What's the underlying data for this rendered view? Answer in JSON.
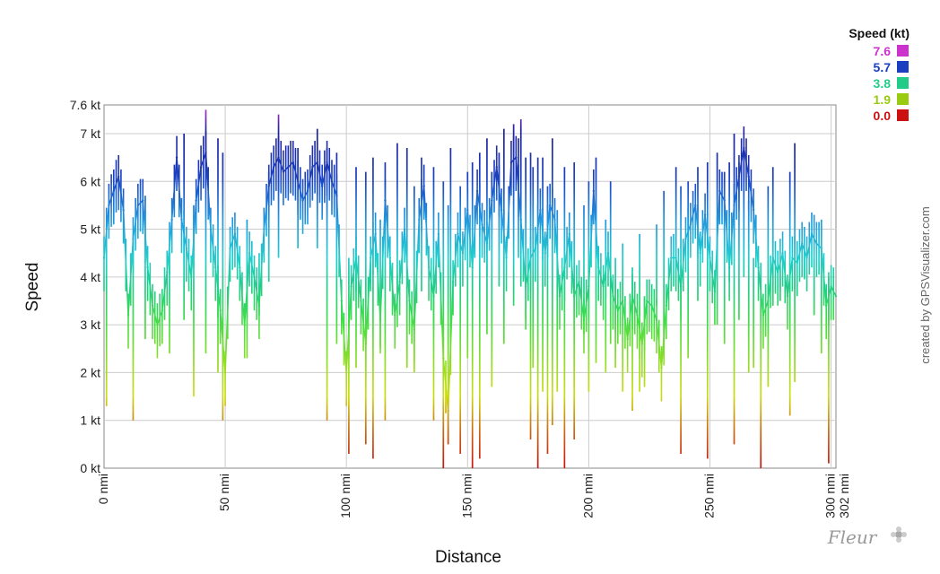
{
  "chart_data": {
    "type": "line",
    "xlabel": "Distance",
    "ylabel": "Speed",
    "xlim": [
      0,
      302
    ],
    "ylim": [
      0,
      7.6
    ],
    "grid": true,
    "x_ticks": [
      {
        "value": 0,
        "label": "0 nmi"
      },
      {
        "value": 50,
        "label": "50 nmi"
      },
      {
        "value": 100,
        "label": "100 nmi"
      },
      {
        "value": 150,
        "label": "150 nmi"
      },
      {
        "value": 200,
        "label": "200 nmi"
      },
      {
        "value": 250,
        "label": "250 nmi"
      },
      {
        "value": 300,
        "label": "300 nmi"
      },
      {
        "value": 302,
        "label": "302 nmi"
      }
    ],
    "y_ticks": [
      {
        "value": 0,
        "label": "0 kt"
      },
      {
        "value": 1,
        "label": "1 kt"
      },
      {
        "value": 2,
        "label": "2 kt"
      },
      {
        "value": 3,
        "label": "3 kt"
      },
      {
        "value": 4,
        "label": "4 kt"
      },
      {
        "value": 5,
        "label": "5 kt"
      },
      {
        "value": 6,
        "label": "6 kt"
      },
      {
        "value": 7,
        "label": "7 kt"
      },
      {
        "value": 7.6,
        "label": "7.6 kt"
      }
    ],
    "legend": {
      "title": "Speed (kt)",
      "placement": "top-right",
      "entries": [
        {
          "label": "7.6",
          "color": "#cc33cc"
        },
        {
          "label": "5.7",
          "color": "#1a40c0"
        },
        {
          "label": "3.8",
          "color": "#22cc88"
        },
        {
          "label": "1.9",
          "color": "#99cc11"
        },
        {
          "label": "0.0",
          "color": "#cc1111"
        }
      ]
    },
    "series": [
      {
        "x": [
          0,
          2,
          4,
          6,
          8,
          10,
          12,
          14,
          16,
          18,
          20,
          22,
          24,
          26,
          28,
          30,
          32,
          34,
          36,
          38,
          40,
          42,
          44,
          46,
          48,
          50,
          52,
          54,
          56,
          58,
          60,
          62,
          64,
          66,
          68,
          70,
          72,
          74,
          76,
          78,
          80,
          82,
          84,
          86,
          88,
          90,
          92,
          94,
          96,
          98,
          100,
          102,
          104,
          106,
          108,
          110,
          112,
          114,
          116,
          118,
          120,
          122,
          124,
          126,
          128,
          130,
          132,
          134,
          136,
          138,
          140,
          142,
          144,
          146,
          148,
          150,
          152,
          154,
          156,
          158,
          160,
          162,
          164,
          166,
          168,
          170,
          172,
          174,
          176,
          178,
          180,
          182,
          184,
          186,
          188,
          190,
          192,
          194,
          196,
          198,
          200,
          202,
          204,
          206,
          208,
          210,
          212,
          214,
          216,
          218,
          220,
          222,
          224,
          226,
          228,
          230,
          232,
          234,
          236,
          238,
          240,
          242,
          244,
          246,
          248,
          250,
          252,
          254,
          256,
          258,
          260,
          262,
          264,
          266,
          268,
          270,
          272,
          274,
          276,
          278,
          280,
          282,
          284,
          286,
          288,
          290,
          292,
          294,
          296,
          298,
          300,
          302
        ],
        "values": [
          4.4,
          5.5,
          5.8,
          6.1,
          5.4,
          3.2,
          4.8,
          5.5,
          5.6,
          4.2,
          3.4,
          3.0,
          3.3,
          4.1,
          5.2,
          6.5,
          5.2,
          4.6,
          4.0,
          5.6,
          6.3,
          6.6,
          5.0,
          4.2,
          3.3,
          2.0,
          4.6,
          4.9,
          4.2,
          3.0,
          4.5,
          4.0,
          3.4,
          5.0,
          5.9,
          6.3,
          6.5,
          6.2,
          6.3,
          6.4,
          6.0,
          5.6,
          5.8,
          6.3,
          6.4,
          5.9,
          6.4,
          6.0,
          5.7,
          3.5,
          2.0,
          3.8,
          4.4,
          3.5,
          2.6,
          4.4,
          4.9,
          3.1,
          5.6,
          4.4,
          3.2,
          3.9,
          5.0,
          3.5,
          2.9,
          5.2,
          5.9,
          4.2,
          3.6,
          4.9,
          2.3,
          1.2,
          3.9,
          4.9,
          4.5,
          5.4,
          4.2,
          5.8,
          5.1,
          4.7,
          5.6,
          6.3,
          5.4,
          4.4,
          6.4,
          6.5,
          5.2,
          3.8,
          4.4,
          4.6,
          5.4,
          4.5,
          5.5,
          5.2,
          3.6,
          4.2,
          4.9,
          3.6,
          3.9,
          3.1,
          3.8,
          5.8,
          4.2,
          3.8,
          4.5,
          3.6,
          3.3,
          3.5,
          2.7,
          3.6,
          3.2,
          2.6,
          3.5,
          3.4,
          3.1,
          2.1,
          3.4,
          4.4,
          4.4,
          3.8,
          4.8,
          5.1,
          5.5,
          4.5,
          5.3,
          4.4,
          3.7,
          5.8,
          5.6,
          4.2,
          5.5,
          6.1,
          6.7,
          6.1,
          5.4,
          4.2,
          3.2,
          3.5,
          4.4,
          4.1,
          4.5,
          3.6,
          4.4,
          4.3,
          4.7,
          4.4,
          4.9,
          4.7,
          4.6,
          3.4,
          3.8,
          3.6
        ],
        "spike_x": [
          1,
          12,
          17,
          27,
          33,
          37,
          42,
          47,
          49,
          59,
          64,
          68,
          72,
          80,
          88,
          92,
          96,
          101,
          104,
          108,
          111,
          114,
          116,
          121,
          125,
          128,
          131,
          136,
          140,
          142,
          143,
          147,
          150,
          152,
          155,
          158,
          160,
          163,
          165,
          169,
          171,
          172,
          174,
          176,
          177,
          179,
          181,
          183,
          185,
          187,
          190,
          194,
          198,
          200,
          203,
          207,
          209,
          211,
          214,
          218,
          221,
          223,
          228,
          231,
          236,
          238,
          241,
          245,
          249,
          253,
          256,
          258,
          260,
          262,
          264,
          266,
          268,
          271,
          274,
          276,
          279,
          283,
          285,
          289,
          293,
          296,
          299
        ],
        "spike_hi": [
          4.6,
          4.9,
          5.7,
          4.5,
          7.0,
          5.5,
          7.5,
          6.9,
          6.6,
          5.2,
          4.5,
          6.2,
          7.4,
          6.7,
          7.1,
          6.7,
          6.6,
          4.4,
          6.3,
          6.2,
          6.5,
          5.2,
          6.4,
          6.8,
          6.7,
          5.9,
          6.5,
          6.3,
          6.0,
          5.5,
          6.7,
          5.9,
          6.2,
          6.4,
          6.6,
          6.9,
          6.2,
          6.6,
          7.1,
          7.2,
          6.9,
          7.3,
          6.5,
          6.6,
          6.3,
          6.5,
          6.5,
          5.9,
          6.9,
          5.4,
          6.3,
          6.4,
          5.5,
          6.0,
          6.5,
          5.2,
          6.0,
          4.4,
          4.7,
          4.2,
          4.9,
          3.6,
          5.1,
          5.8,
          6.3,
          5.9,
          6.0,
          6.3,
          6.4,
          6.6,
          6.2,
          6.4,
          7.0,
          6.4,
          6.6,
          5.6,
          4.4,
          4.3,
          5.9,
          6.3,
          4.2,
          6.2,
          6.8,
          4.5,
          4.4,
          5.2,
          4.0
        ],
        "spike_lo": [
          1.3,
          1.0,
          2.7,
          2.4,
          3.1,
          1.5,
          2.4,
          2.0,
          1.0,
          2.3,
          3.2,
          3.9,
          4.4,
          4.6,
          4.6,
          1.0,
          2.6,
          0.3,
          2.1,
          0.5,
          0.2,
          2.5,
          1.0,
          3.7,
          2.1,
          2.0,
          3.7,
          1.0,
          0.0,
          0.5,
          2.7,
          0.3,
          2.3,
          0.0,
          0.2,
          2.8,
          1.7,
          3.8,
          2.6,
          3.4,
          4.4,
          3.8,
          2.9,
          0.6,
          2.1,
          0.0,
          1.6,
          0.3,
          0.9,
          1.6,
          0.0,
          0.6,
          2.8,
          1.6,
          2.2,
          2.0,
          2.6,
          2.1,
          1.6,
          1.2,
          1.6,
          1.7,
          3.4,
          2.3,
          3.9,
          0.3,
          2.3,
          3.5,
          0.2,
          3.0,
          2.6,
          3.9,
          0.5,
          3.1,
          4.0,
          2.0,
          2.1,
          0.0,
          1.7,
          3.4,
          3.5,
          1.1,
          1.8,
          4.0,
          3.2,
          2.4,
          0.1
        ]
      }
    ],
    "side_text": "created by GPSVisualizer.com",
    "watermark": "Fleur"
  }
}
